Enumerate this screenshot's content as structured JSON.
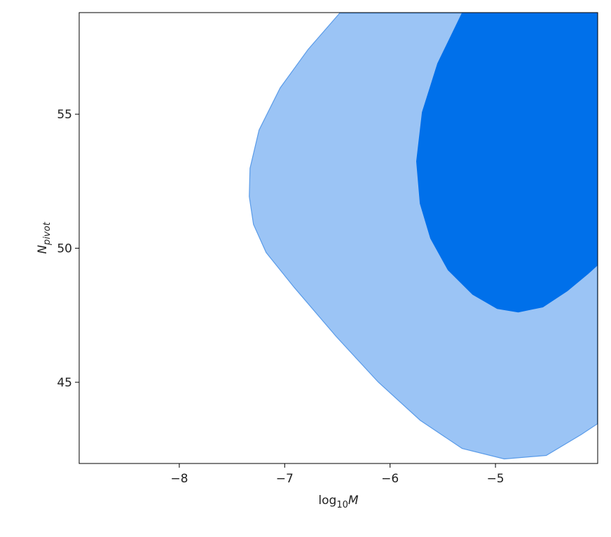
{
  "chart_data": {
    "type": "contour",
    "xlabel": [
      "log",
      "10",
      "M"
    ],
    "ylabel": [
      "N",
      "pivot"
    ],
    "xlim": [
      -8.95,
      -4.03
    ],
    "ylim": [
      41.97,
      58.79
    ],
    "xticks": [
      {
        "value": -8,
        "label": "−8"
      },
      {
        "value": -7,
        "label": "−7"
      },
      {
        "value": -6,
        "label": "−6"
      },
      {
        "value": -5,
        "label": "−5"
      }
    ],
    "yticks": [
      45,
      50,
      55
    ],
    "contours": [
      {
        "color": "#9bc4f5",
        "edgecolor": "#5a9be8",
        "x": [
          -6.478,
          -6.777,
          -7.043,
          -7.243,
          -7.329,
          -7.336,
          -7.296,
          -7.176,
          -6.91,
          -6.512,
          -6.113,
          -5.714,
          -5.316,
          -4.917,
          -4.518,
          -4.186,
          -4.033,
          -4.033
        ],
        "y": [
          58.77,
          57.42,
          55.98,
          54.41,
          52.98,
          51.93,
          50.89,
          49.84,
          48.54,
          46.71,
          45.01,
          43.58,
          42.53,
          42.14,
          42.27,
          43.05,
          43.45,
          58.77
        ]
      },
      {
        "color": "#0070ea",
        "edgecolor": "#0070ea",
        "x": [
          -5.316,
          -5.548,
          -5.694,
          -5.748,
          -5.714,
          -5.615,
          -5.449,
          -5.216,
          -4.983,
          -4.784,
          -4.551,
          -4.319,
          -4.12,
          -4.033,
          -4.033
        ],
        "y": [
          58.77,
          56.89,
          55.07,
          53.24,
          51.67,
          50.37,
          49.19,
          48.28,
          47.75,
          47.62,
          47.81,
          48.41,
          49.06,
          49.37,
          58.77
        ]
      }
    ]
  }
}
